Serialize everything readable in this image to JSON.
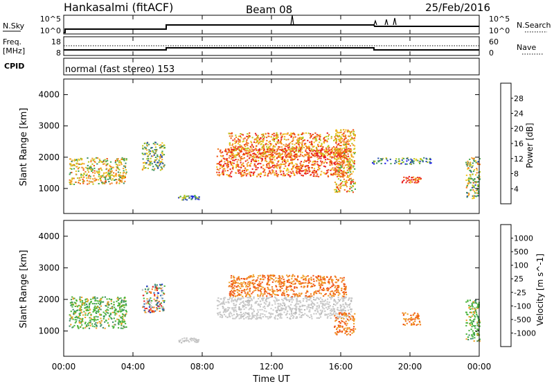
{
  "header": {
    "station": "Hankasalmi (fitACF)",
    "beam": "Beam 08",
    "date": "25/Feb/2016"
  },
  "strip_nsky": {
    "left_label": "N.Sky",
    "left_top_tick": "10^5",
    "left_bottom_tick": "10^0",
    "right_label": "N.Search",
    "right_top_tick": "10^5",
    "right_bottom_tick": "10^0"
  },
  "strip_freq": {
    "left_label_line1": "Freq.",
    "left_label_line2": "[MHz]",
    "left_top_tick": "18",
    "left_bottom_tick": "8",
    "right_label": "Nave",
    "right_top_tick": "60",
    "right_bottom_tick": "0"
  },
  "cpid": {
    "label": "CPID",
    "mode": "normal (fast stereo) 153"
  },
  "chart_data": [
    {
      "type": "heatmap",
      "panel": "power",
      "ylabel": "Slant Range [km]",
      "ylim": [
        200,
        4500
      ],
      "xlim_hours": [
        0,
        24
      ],
      "yticks": [
        "1000",
        "2000",
        "3000",
        "4000"
      ],
      "colorbar": {
        "label": "Power [dB]",
        "ticks": [
          "4",
          "8",
          "12",
          "16",
          "20",
          "24",
          "28"
        ],
        "colors": [
          "#1f1fe8",
          "#2c52b0",
          "#3c8c64",
          "#4aa84a",
          "#b8c81e",
          "#f0c81e",
          "#f0a028",
          "#f07a1e",
          "#f05014",
          "#e81e1e"
        ]
      },
      "echo_regions": [
        {
          "t_start": 0.3,
          "t_end": 3.6,
          "r_low": 1150,
          "r_high": 2000,
          "level": 0.55
        },
        {
          "t_start": 4.5,
          "t_end": 5.8,
          "r_low": 1600,
          "r_high": 2500,
          "level": 0.4
        },
        {
          "t_start": 6.6,
          "t_end": 7.8,
          "r_low": 650,
          "r_high": 800,
          "level": 0.25
        },
        {
          "t_start": 8.8,
          "t_end": 16.6,
          "r_low": 1400,
          "r_high": 2300,
          "level": 0.8
        },
        {
          "t_start": 9.5,
          "t_end": 16.3,
          "r_low": 2000,
          "r_high": 2800,
          "level": 0.7
        },
        {
          "t_start": 15.6,
          "t_end": 16.8,
          "r_low": 900,
          "r_high": 2900,
          "level": 0.65
        },
        {
          "t_start": 17.8,
          "t_end": 21.2,
          "r_low": 1800,
          "r_high": 2000,
          "level": 0.3
        },
        {
          "t_start": 19.5,
          "t_end": 20.6,
          "r_low": 1200,
          "r_high": 1400,
          "level": 0.85
        },
        {
          "t_start": 23.2,
          "t_end": 24.0,
          "r_low": 700,
          "r_high": 2000,
          "level": 0.45
        }
      ]
    },
    {
      "type": "heatmap",
      "panel": "velocity",
      "ylabel": "Slant Range [km]",
      "xlabel": "Time UT",
      "ylim": [
        200,
        4500
      ],
      "xlim_hours": [
        0,
        24
      ],
      "yticks": [
        "1000",
        "2000",
        "3000",
        "4000"
      ],
      "xticks": [
        "00:00",
        "04:00",
        "08:00",
        "12:00",
        "16:00",
        "20:00",
        "00:00"
      ],
      "colorbar": {
        "label": "Velocity [m s^-1]",
        "ticks": [
          "1000",
          "500",
          "100",
          "25",
          "-25",
          "-100",
          "-500",
          "-1000"
        ],
        "colors": [
          "#1f3cc8",
          "#2c6eb0",
          "#3c8c64",
          "#4ab43c",
          "#c8c8c8",
          "#c8c8c8",
          "#f0a028",
          "#f07a1e",
          "#f05014",
          "#e81e1e"
        ]
      },
      "echo_regions": [
        {
          "t_start": 0.3,
          "t_end": 3.6,
          "r_low": 1100,
          "r_high": 2100,
          "class": "positive"
        },
        {
          "t_start": 4.5,
          "t_end": 5.8,
          "r_low": 1600,
          "r_high": 2500,
          "class": "mixed"
        },
        {
          "t_start": 6.6,
          "t_end": 7.8,
          "r_low": 650,
          "r_high": 800,
          "class": "ground"
        },
        {
          "t_start": 8.8,
          "t_end": 16.6,
          "r_low": 1400,
          "r_high": 2100,
          "class": "ground"
        },
        {
          "t_start": 9.5,
          "t_end": 16.3,
          "r_low": 2100,
          "r_high": 2800,
          "class": "negative"
        },
        {
          "t_start": 15.6,
          "t_end": 16.8,
          "r_low": 900,
          "r_high": 1600,
          "class": "negative"
        },
        {
          "t_start": 19.5,
          "t_end": 20.6,
          "r_low": 1200,
          "r_high": 1600,
          "class": "negative"
        },
        {
          "t_start": 23.2,
          "t_end": 24.0,
          "r_low": 700,
          "r_high": 2000,
          "class": "positive"
        }
      ]
    }
  ]
}
